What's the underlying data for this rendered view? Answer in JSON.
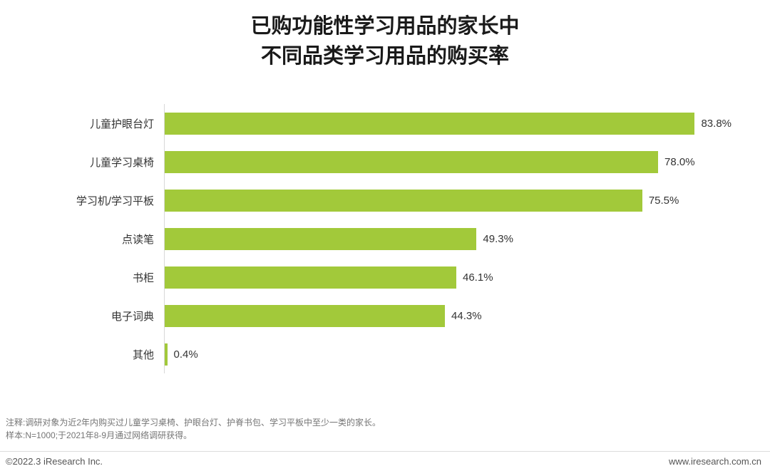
{
  "title": {
    "line1": "已购功能性学习用品的家长中",
    "line2": "不同品类学习用品的购买率"
  },
  "chart_data": {
    "type": "bar",
    "orientation": "horizontal",
    "title": "已购功能性学习用品的家长中不同品类学习用品的购买率",
    "categories": [
      "儿童护眼台灯",
      "儿童学习桌椅",
      "学习机/学习平板",
      "点读笔",
      "书柜",
      "电子词典",
      "其他"
    ],
    "values": [
      83.8,
      78.0,
      75.5,
      49.3,
      46.1,
      44.3,
      0.4
    ],
    "value_labels": [
      "83.8%",
      "78.0%",
      "75.5%",
      "49.3%",
      "46.1%",
      "44.3%",
      "0.4%"
    ],
    "xlim": [
      0,
      100
    ],
    "unit": "%",
    "bar_color": "#a2c93a",
    "axis_line_color": "#d8d8d8",
    "grid": false,
    "legend": false
  },
  "notes": {
    "line1": "注释:调研对象为近2年内购买过儿童学习桌椅、护眼台灯、护脊书包、学习平板中至少一类的家长。",
    "line2": "样本:N=1000;于2021年8-9月通过网络调研获得。"
  },
  "footer": {
    "left": "©2022.3 iResearch Inc.",
    "right": "www.iresearch.com.cn"
  }
}
